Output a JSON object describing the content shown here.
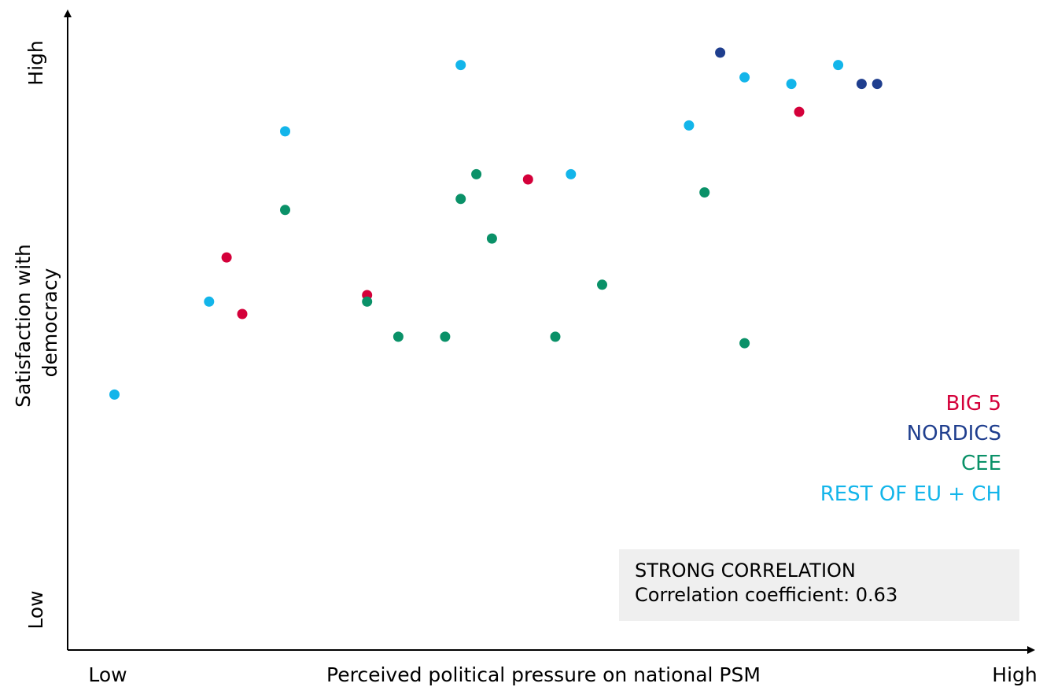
{
  "chart_data": {
    "type": "scatter",
    "title": "",
    "xlabel": "Perceived political pressure on national PSM",
    "ylabel": "Satisfaction with democracy",
    "x_tick_low": "Low",
    "x_tick_high": "High",
    "y_tick_low": "Low",
    "y_tick_high": "High",
    "xlim": [
      0,
      100
    ],
    "ylim": [
      0,
      100
    ],
    "grid": false,
    "legend_position": "right-middle",
    "series": [
      {
        "name": "BIG 5",
        "color": "#d4003a",
        "points": [
          [
            16.3,
            60.4
          ],
          [
            17.9,
            51.7
          ],
          [
            30.7,
            54.6
          ],
          [
            47.2,
            72.4
          ],
          [
            75.0,
            82.8
          ]
        ]
      },
      {
        "name": "NORDICS",
        "color": "#1f3e8e",
        "points": [
          [
            66.9,
            91.9
          ],
          [
            81.4,
            87.1
          ],
          [
            83.0,
            87.1
          ]
        ]
      },
      {
        "name": "CEE",
        "color": "#0a9168",
        "points": [
          [
            22.3,
            67.7
          ],
          [
            30.7,
            53.6
          ],
          [
            33.9,
            48.2
          ],
          [
            38.7,
            48.2
          ],
          [
            40.3,
            69.4
          ],
          [
            41.9,
            73.2
          ],
          [
            43.5,
            63.3
          ],
          [
            50.0,
            48.2
          ],
          [
            54.8,
            56.2
          ],
          [
            65.3,
            70.4
          ],
          [
            69.4,
            47.2
          ]
        ]
      },
      {
        "name": "REST OF EU + CH",
        "color": "#13b5ea",
        "points": [
          [
            4.8,
            39.3
          ],
          [
            14.5,
            53.6
          ],
          [
            22.3,
            79.8
          ],
          [
            40.3,
            90.0
          ],
          [
            51.6,
            73.2
          ],
          [
            63.7,
            80.7
          ],
          [
            69.4,
            88.1
          ],
          [
            74.2,
            87.1
          ],
          [
            79.0,
            90.0
          ]
        ]
      }
    ],
    "annotation": {
      "title": "STRONG CORRELATION",
      "text": "Correlation coefficient: 0.63"
    }
  }
}
